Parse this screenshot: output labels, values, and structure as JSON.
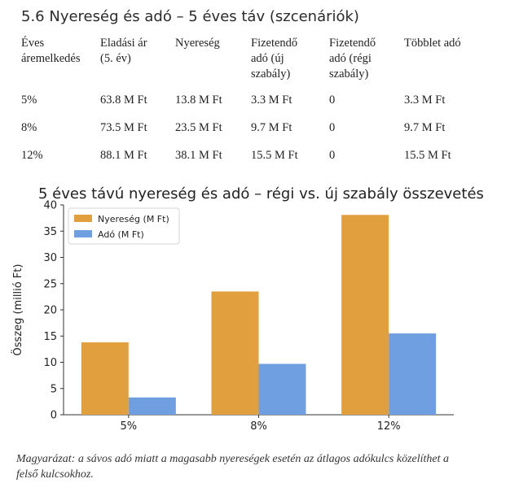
{
  "section_title": "5.6 Nyereség és adó – 5 éves táv (szcenáriók)",
  "table": {
    "headers": [
      [
        "Éves",
        "áremelkedés"
      ],
      [
        "Eladási ár",
        "(5. év)"
      ],
      [
        "Nyereség"
      ],
      [
        "Fizetendő",
        "adó (új",
        "szabály)"
      ],
      [
        "Fizetendő",
        "adó (régi",
        "szabály)"
      ],
      [
        "Többlet adó"
      ]
    ],
    "rows": [
      [
        "5%",
        "63.8 M Ft",
        "13.8 M Ft",
        "3.3 M Ft",
        "0",
        "3.3 M Ft"
      ],
      [
        "8%",
        "73.5 M Ft",
        "23.5 M Ft",
        "9.7 M Ft",
        "0",
        "9.7 M Ft"
      ],
      [
        "12%",
        "88.1 M Ft",
        "38.1 M Ft",
        "15.5 M Ft",
        "0",
        "15.5 M Ft"
      ]
    ]
  },
  "chart_data": {
    "type": "bar",
    "title": "5 éves távú nyereség és adó – régi vs. új szabály összevetés",
    "categories": [
      "5%",
      "8%",
      "12%"
    ],
    "series": [
      {
        "name": "Nyereség (M Ft)",
        "color": "#E29F3D",
        "values": [
          13.8,
          23.5,
          38.1
        ]
      },
      {
        "name": "Adó (M Ft)",
        "color": "#6F9FE0",
        "values": [
          3.3,
          9.7,
          15.5
        ]
      }
    ],
    "xlabel": "",
    "ylabel": "Összeg (millió Ft)",
    "ylim": [
      0,
      40
    ],
    "yticks": [
      0,
      5,
      10,
      15,
      20,
      25,
      30,
      35,
      40
    ],
    "legend": "top-left",
    "grid": false
  },
  "caption": "Magyarázat: a sávos adó miatt a magasabb nyereségek esetén az átlagos adókulcs közelíthet a felső kulcsokhoz."
}
